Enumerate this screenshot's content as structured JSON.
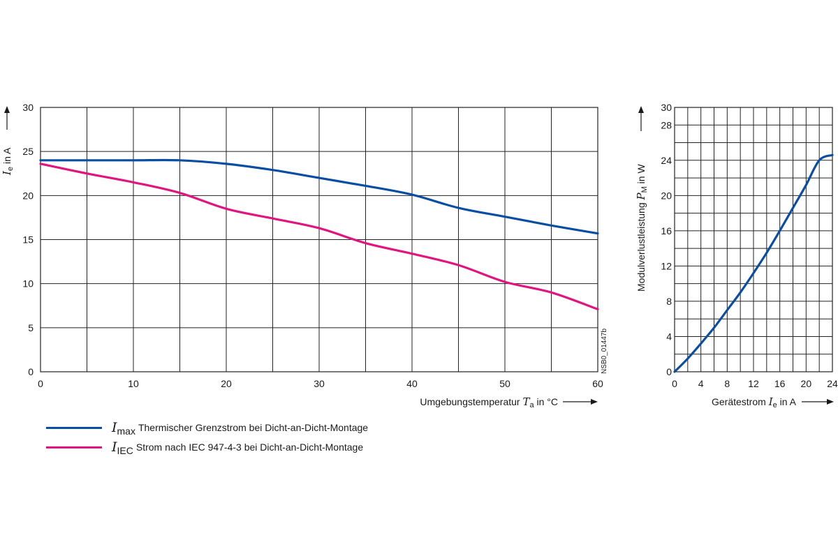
{
  "chart_data": [
    {
      "type": "line",
      "xlabel": "Umgebungstemperatur",
      "xsymbol": "T",
      "xsymbol_sub": "a",
      "xunit": "in °C",
      "ysymbol": "I",
      "ysymbol_sub": "e",
      "yunit": "in A",
      "xlim": [
        0,
        60
      ],
      "ylim": [
        0,
        30
      ],
      "xticks": [
        "0",
        "10",
        "20",
        "30",
        "40",
        "50",
        "60"
      ],
      "yticks": [
        "0",
        "5",
        "10",
        "15",
        "20",
        "25",
        "30"
      ],
      "grid": true,
      "figure_code": "NSB0_01447b",
      "series": [
        {
          "name": "Imax",
          "symbol": "I",
          "sub": "max",
          "description": "Thermischer Grenzstrom bei Dicht-an-Dicht-Montage",
          "color": "#0a4ea3",
          "x": [
            0,
            5,
            10,
            15,
            20,
            25,
            30,
            35,
            40,
            45,
            50,
            55,
            60
          ],
          "y": [
            24,
            24,
            24,
            24,
            23.6,
            22.9,
            22.0,
            21.1,
            20.1,
            18.6,
            17.6,
            16.6,
            15.7
          ]
        },
        {
          "name": "IIEC",
          "symbol": "I",
          "sub": "IEC",
          "description": "Strom nach IEC 947-4-3 bei Dicht-an-Dicht-Montage",
          "color": "#e0157f",
          "x": [
            0,
            5,
            10,
            15,
            20,
            25,
            30,
            35,
            40,
            45,
            50,
            55,
            60
          ],
          "y": [
            23.6,
            22.5,
            21.5,
            20.3,
            18.5,
            17.4,
            16.3,
            14.6,
            13.4,
            12.1,
            10.2,
            9.0,
            7.1
          ]
        }
      ]
    },
    {
      "type": "line",
      "xlabel": "Gerätestrom",
      "xsymbol": "I",
      "xsymbol_sub": "e",
      "xunit": "in A",
      "ylabel": "Modulverlustleistung",
      "ysymbol": "P",
      "ysymbol_sub": "M",
      "yunit": "in W",
      "xlim": [
        0,
        24
      ],
      "ylim": [
        0,
        30
      ],
      "xticks": [
        "0",
        "4",
        "8",
        "12",
        "16",
        "20",
        "24"
      ],
      "yticks": [
        "0",
        "4",
        "8",
        "12",
        "16",
        "20",
        "24",
        "28",
        "30"
      ],
      "grid": true,
      "series": [
        {
          "name": "PM",
          "color": "#0a4ea3",
          "x": [
            0,
            2,
            4,
            6,
            8,
            10,
            12,
            14,
            16,
            18,
            20,
            22,
            24
          ],
          "y": [
            0,
            1.5,
            3.2,
            5.0,
            7.0,
            9.0,
            11.2,
            13.5,
            16.0,
            18.6,
            21.2,
            24.0,
            24.6
          ]
        }
      ]
    }
  ]
}
